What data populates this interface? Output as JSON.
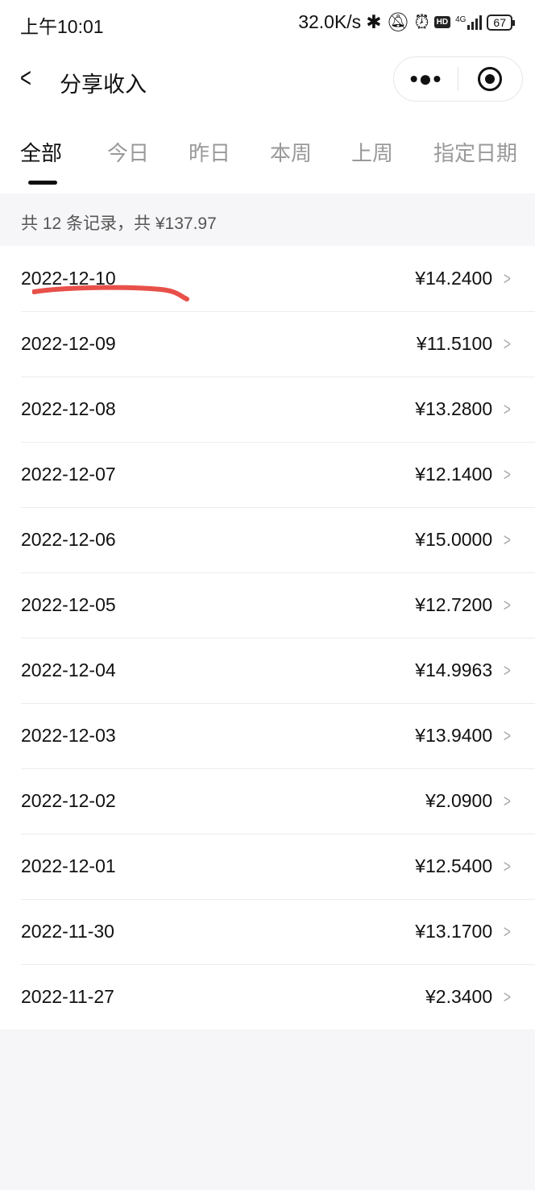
{
  "status_bar": {
    "time": "上午10:01",
    "speed": "32.0K/s",
    "network": "4G",
    "hd": "HD",
    "battery": "67"
  },
  "header": {
    "title": "分享收入",
    "more_icon": "more-dots-icon",
    "close_icon": "target-icon"
  },
  "tabs": [
    {
      "label": "全部",
      "active": true
    },
    {
      "label": "今日"
    },
    {
      "label": "昨日"
    },
    {
      "label": "本周"
    },
    {
      "label": "上周"
    },
    {
      "label": "指定日期"
    }
  ],
  "summary": "共 12 条记录，共 ¥137.97",
  "records": [
    {
      "date": "2022-12-10",
      "amount": "¥14.2400"
    },
    {
      "date": "2022-12-09",
      "amount": "¥11.5100"
    },
    {
      "date": "2022-12-08",
      "amount": "¥13.2800"
    },
    {
      "date": "2022-12-07",
      "amount": "¥12.1400"
    },
    {
      "date": "2022-12-06",
      "amount": "¥15.0000"
    },
    {
      "date": "2022-12-05",
      "amount": "¥12.7200"
    },
    {
      "date": "2022-12-04",
      "amount": "¥14.9963"
    },
    {
      "date": "2022-12-03",
      "amount": "¥13.9400"
    },
    {
      "date": "2022-12-02",
      "amount": "¥2.0900"
    },
    {
      "date": "2022-12-01",
      "amount": "¥12.5400"
    },
    {
      "date": "2022-11-30",
      "amount": "¥13.1700"
    },
    {
      "date": "2022-11-27",
      "amount": "¥2.3400"
    }
  ],
  "colors": {
    "annotation": "#e8504a",
    "background": "#f6f6f8"
  }
}
